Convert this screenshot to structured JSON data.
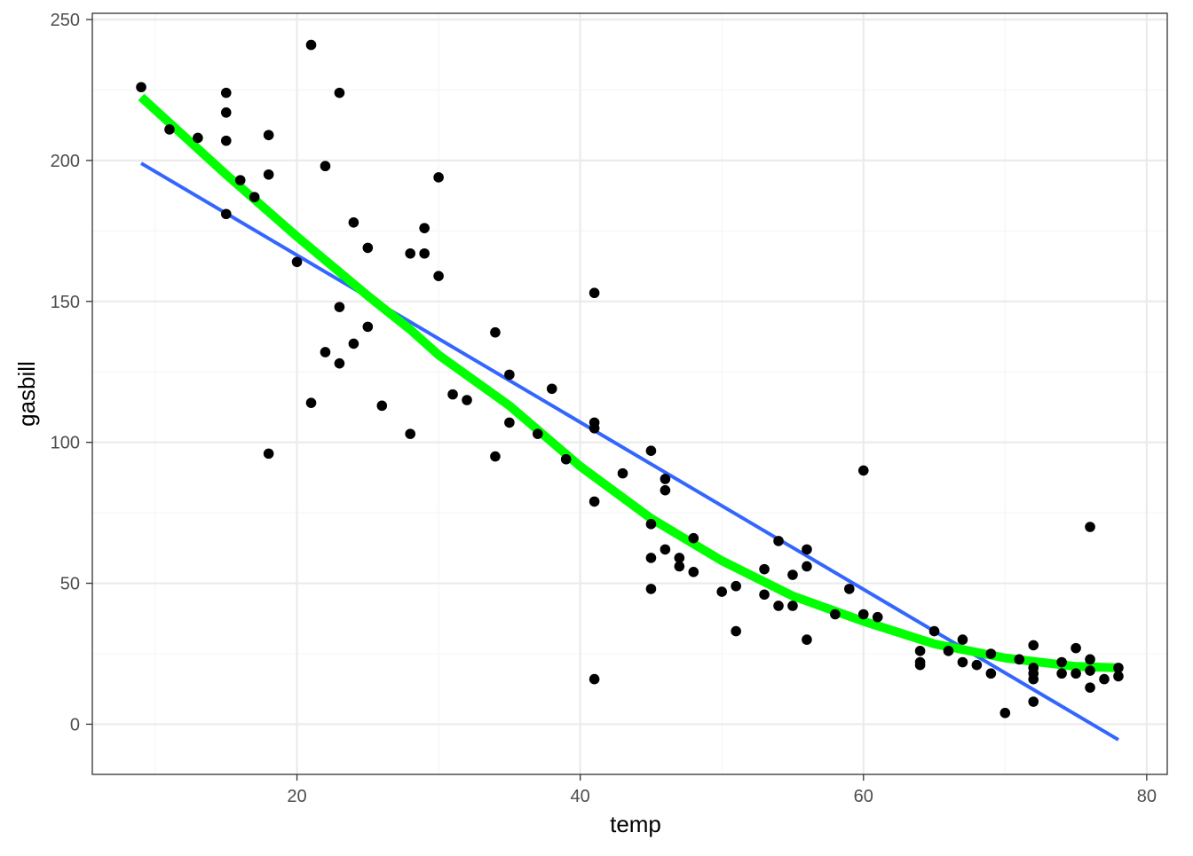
{
  "chart_data": {
    "type": "scatter",
    "title": "",
    "xlabel": "temp",
    "ylabel": "gasbill",
    "xlim": [
      5.55,
      81.45
    ],
    "ylim": [
      -17.8,
      252.2
    ],
    "x_ticks": [
      20,
      40,
      60,
      80
    ],
    "y_ticks": [
      0,
      50,
      100,
      150,
      200,
      250
    ],
    "x_minor_ticks": [
      10,
      30,
      50,
      70
    ],
    "y_minor_ticks": [
      25,
      75,
      125,
      175,
      225
    ],
    "grid": true,
    "legend": "none",
    "colors": {
      "points": "#000000",
      "linear_fit": "#3366FF",
      "quadratic_fit": "#00FF00",
      "panel_border": "#333333",
      "grid_major": "#EBEBEB",
      "grid_minor": "#F5F5F5",
      "tick_label": "#4D4D4D"
    },
    "points": [
      [
        9,
        226
      ],
      [
        11,
        211
      ],
      [
        13,
        208
      ],
      [
        15,
        224
      ],
      [
        15,
        217
      ],
      [
        15,
        207
      ],
      [
        15,
        181
      ],
      [
        16,
        193
      ],
      [
        17,
        187
      ],
      [
        18,
        209
      ],
      [
        18,
        195
      ],
      [
        18,
        96
      ],
      [
        20,
        164
      ],
      [
        21,
        241
      ],
      [
        21,
        114
      ],
      [
        22,
        198
      ],
      [
        22,
        132
      ],
      [
        23,
        224
      ],
      [
        23,
        148
      ],
      [
        23,
        128
      ],
      [
        24,
        178
      ],
      [
        24,
        135
      ],
      [
        25,
        169
      ],
      [
        25,
        141
      ],
      [
        26,
        113
      ],
      [
        28,
        167
      ],
      [
        28,
        103
      ],
      [
        29,
        176
      ],
      [
        29,
        167
      ],
      [
        30,
        194
      ],
      [
        30,
        159
      ],
      [
        31,
        117
      ],
      [
        32,
        115
      ],
      [
        34,
        139
      ],
      [
        34,
        95
      ],
      [
        35,
        124
      ],
      [
        35,
        107
      ],
      [
        37,
        103
      ],
      [
        38,
        119
      ],
      [
        39,
        94
      ],
      [
        41,
        153
      ],
      [
        41,
        107
      ],
      [
        41,
        105
      ],
      [
        41,
        79
      ],
      [
        41,
        16
      ],
      [
        43,
        89
      ],
      [
        45,
        97
      ],
      [
        45,
        71
      ],
      [
        45,
        59
      ],
      [
        45,
        48
      ],
      [
        46,
        87
      ],
      [
        46,
        83
      ],
      [
        46,
        62
      ],
      [
        47,
        59
      ],
      [
        47,
        56
      ],
      [
        48,
        66
      ],
      [
        48,
        54
      ],
      [
        50,
        47
      ],
      [
        51,
        49
      ],
      [
        51,
        33
      ],
      [
        53,
        55
      ],
      [
        53,
        46
      ],
      [
        54,
        65
      ],
      [
        54,
        42
      ],
      [
        55,
        53
      ],
      [
        55,
        42
      ],
      [
        56,
        62
      ],
      [
        56,
        56
      ],
      [
        56,
        30
      ],
      [
        58,
        39
      ],
      [
        59,
        48
      ],
      [
        60,
        90
      ],
      [
        60,
        39
      ],
      [
        61,
        38
      ],
      [
        64,
        26
      ],
      [
        64,
        22
      ],
      [
        64,
        21
      ],
      [
        65,
        33
      ],
      [
        66,
        26
      ],
      [
        67,
        30
      ],
      [
        67,
        22
      ],
      [
        68,
        21
      ],
      [
        69,
        25
      ],
      [
        69,
        18
      ],
      [
        70,
        4
      ],
      [
        71,
        23
      ],
      [
        72,
        28
      ],
      [
        72,
        20
      ],
      [
        72,
        18
      ],
      [
        72,
        16
      ],
      [
        72,
        8
      ],
      [
        74,
        22
      ],
      [
        74,
        18
      ],
      [
        75,
        27
      ],
      [
        75,
        18
      ],
      [
        76,
        70
      ],
      [
        76,
        23
      ],
      [
        76,
        19
      ],
      [
        76,
        13
      ],
      [
        77,
        16
      ],
      [
        78,
        20
      ],
      [
        78,
        17
      ]
    ],
    "series": [
      {
        "type": "line",
        "x": [
          9,
          78
        ],
        "y": [
          199,
          -5.5
        ]
      },
      {
        "type": "line",
        "x": [
          9,
          15,
          20,
          25,
          28,
          30,
          35,
          40,
          45,
          50,
          55,
          60,
          65,
          70,
          75,
          78
        ],
        "y": [
          222.5,
          195,
          173,
          152,
          140,
          131,
          113,
          91.5,
          73,
          58,
          45.5,
          36.5,
          28.5,
          23.5,
          20.5,
          20
        ]
      }
    ]
  }
}
